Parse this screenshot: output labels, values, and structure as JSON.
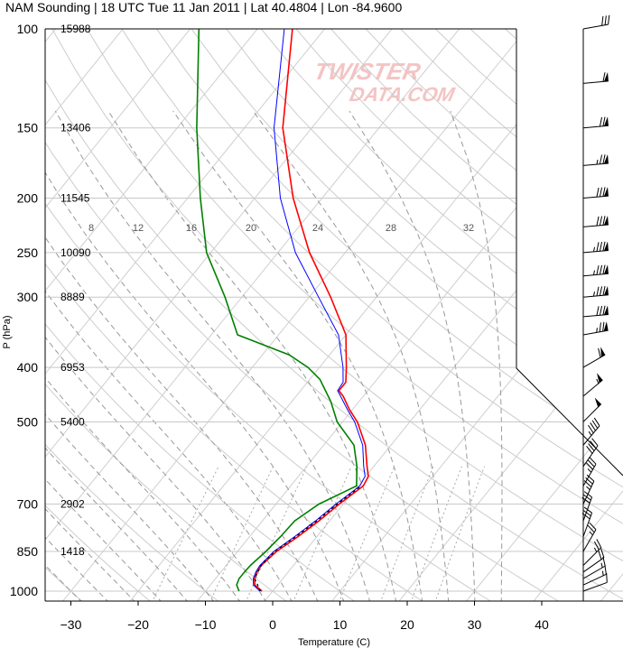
{
  "chart_data": {
    "type": "line",
    "subtype": "skew-t log-p sounding",
    "title": "NAM Sounding | 18 UTC Tue 11 Jan 2011 | Lat 40.4804 | Lon -84.9600",
    "xlabel": "Temperature (C)",
    "ylabel": "P (hPa)",
    "xlim": [
      -35,
      47
    ],
    "ylim": [
      1000,
      100
    ],
    "y_scale": "log",
    "x_ticks": [
      "−30",
      "−20",
      "−10",
      "0",
      "10",
      "20",
      "30",
      "40"
    ],
    "y_ticks": [
      "100",
      "150",
      "200",
      "250",
      "300",
      "400",
      "500",
      "700",
      "850",
      "1000"
    ],
    "height_labels": [
      {
        "p": 100,
        "label": "15988"
      },
      {
        "p": 150,
        "label": "13406"
      },
      {
        "p": 200,
        "label": "11545"
      },
      {
        "p": 250,
        "label": "10090"
      },
      {
        "p": 300,
        "label": "8889"
      },
      {
        "p": 400,
        "label": "6953"
      },
      {
        "p": 500,
        "label": "5400"
      },
      {
        "p": 700,
        "label": "2902"
      },
      {
        "p": 850,
        "label": "1418"
      }
    ],
    "mixing_ratio_labels": [
      "8",
      "12",
      "16",
      "20",
      "24",
      "28",
      "32"
    ],
    "series": [
      {
        "color": "#ff0000",
        "points": [
          [
            1000,
            -1.6
          ],
          [
            975,
            -3.4
          ],
          [
            950,
            -4.2
          ],
          [
            925,
            -4.6
          ],
          [
            900,
            -4.8
          ],
          [
            850,
            -4.2
          ],
          [
            800,
            -2.8
          ],
          [
            750,
            -1.6
          ],
          [
            700,
            -0.6
          ],
          [
            650,
            0.8
          ],
          [
            625,
            0.4
          ],
          [
            600,
            -1.0
          ],
          [
            550,
            -3.8
          ],
          [
            500,
            -7.8
          ],
          [
            475,
            -10.5
          ],
          [
            450,
            -13.0
          ],
          [
            440,
            -14.3
          ],
          [
            425,
            -14.3
          ],
          [
            400,
            -16.0
          ],
          [
            350,
            -20.0
          ],
          [
            300,
            -26.8
          ],
          [
            250,
            -35.3
          ],
          [
            200,
            -44.3
          ],
          [
            150,
            -54.3
          ],
          [
            100,
            -64.8
          ]
        ]
      },
      {
        "color": "#0000ff",
        "points": [
          [
            1000,
            -1.9
          ],
          [
            975,
            -3.6
          ],
          [
            950,
            -4.4
          ],
          [
            925,
            -4.8
          ],
          [
            900,
            -5.0
          ],
          [
            850,
            -4.6
          ],
          [
            800,
            -3.3
          ],
          [
            750,
            -2.1
          ],
          [
            700,
            -1.1
          ],
          [
            650,
            0.3
          ],
          [
            625,
            -0.1
          ],
          [
            600,
            -1.5
          ],
          [
            550,
            -4.2
          ],
          [
            500,
            -8.2
          ],
          [
            475,
            -10.8
          ],
          [
            450,
            -13.4
          ],
          [
            440,
            -14.5
          ],
          [
            425,
            -14.7
          ],
          [
            400,
            -16.5
          ],
          [
            350,
            -21.1
          ],
          [
            300,
            -28.6
          ],
          [
            250,
            -37.4
          ],
          [
            200,
            -46.2
          ],
          [
            150,
            -55.6
          ],
          [
            100,
            -66.0
          ]
        ]
      },
      {
        "color": "#008000",
        "points": [
          [
            1000,
            -5.0
          ],
          [
            975,
            -6.1
          ],
          [
            950,
            -6.5
          ],
          [
            925,
            -6.5
          ],
          [
            900,
            -6.4
          ],
          [
            850,
            -5.8
          ],
          [
            800,
            -5.4
          ],
          [
            750,
            -5.2
          ],
          [
            700,
            -3.6
          ],
          [
            650,
            -0.2
          ],
          [
            600,
            -2.5
          ],
          [
            550,
            -5.5
          ],
          [
            500,
            -10.8
          ],
          [
            460,
            -14.2
          ],
          [
            440,
            -16.3
          ],
          [
            420,
            -18.5
          ],
          [
            400,
            -21.7
          ],
          [
            380,
            -26.0
          ],
          [
            350,
            -36.1
          ],
          [
            300,
            -42.5
          ],
          [
            250,
            -50.6
          ],
          [
            200,
            -58.1
          ],
          [
            150,
            -67.1
          ],
          [
            100,
            -78.7
          ]
        ]
      },
      {
        "color": "#000000",
        "dashed": true,
        "points": [
          [
            1000,
            -1.8
          ],
          [
            950,
            -4.2
          ],
          [
            900,
            -4.8
          ],
          [
            850,
            -4.5
          ],
          [
            800,
            -3.1
          ],
          [
            750,
            -1.9
          ],
          [
            700,
            -0.9
          ],
          [
            650,
            0.5
          ]
        ]
      }
    ],
    "wind_barbs": [
      {
        "p": 1000,
        "dir_deg": 250,
        "speed_kt": 10
      },
      {
        "p": 975,
        "dir_deg": 245,
        "speed_kt": 15
      },
      {
        "p": 950,
        "dir_deg": 240,
        "speed_kt": 15
      },
      {
        "p": 925,
        "dir_deg": 235,
        "speed_kt": 20
      },
      {
        "p": 900,
        "dir_deg": 225,
        "speed_kt": 25
      },
      {
        "p": 850,
        "dir_deg": 210,
        "speed_kt": 25
      },
      {
        "p": 800,
        "dir_deg": 200,
        "speed_kt": 30
      },
      {
        "p": 750,
        "dir_deg": 200,
        "speed_kt": 30
      },
      {
        "p": 700,
        "dir_deg": 205,
        "speed_kt": 35
      },
      {
        "p": 650,
        "dir_deg": 210,
        "speed_kt": 35
      },
      {
        "p": 600,
        "dir_deg": 215,
        "speed_kt": 40
      },
      {
        "p": 550,
        "dir_deg": 220,
        "speed_kt": 45
      },
      {
        "p": 500,
        "dir_deg": 225,
        "speed_kt": 50
      },
      {
        "p": 450,
        "dir_deg": 230,
        "speed_kt": 55
      },
      {
        "p": 400,
        "dir_deg": 240,
        "speed_kt": 60
      },
      {
        "p": 350,
        "dir_deg": 260,
        "speed_kt": 75
      },
      {
        "p": 325,
        "dir_deg": 265,
        "speed_kt": 80
      },
      {
        "p": 300,
        "dir_deg": 265,
        "speed_kt": 85
      },
      {
        "p": 275,
        "dir_deg": 265,
        "speed_kt": 85
      },
      {
        "p": 250,
        "dir_deg": 265,
        "speed_kt": 85
      },
      {
        "p": 225,
        "dir_deg": 265,
        "speed_kt": 80
      },
      {
        "p": 200,
        "dir_deg": 265,
        "speed_kt": 80
      },
      {
        "p": 175,
        "dir_deg": 265,
        "speed_kt": 75
      },
      {
        "p": 150,
        "dir_deg": 265,
        "speed_kt": 70
      },
      {
        "p": 125,
        "dir_deg": 265,
        "speed_kt": 60
      },
      {
        "p": 100,
        "dir_deg": 260,
        "speed_kt": 30
      }
    ],
    "watermark": "TWISTER DATA.COM"
  }
}
